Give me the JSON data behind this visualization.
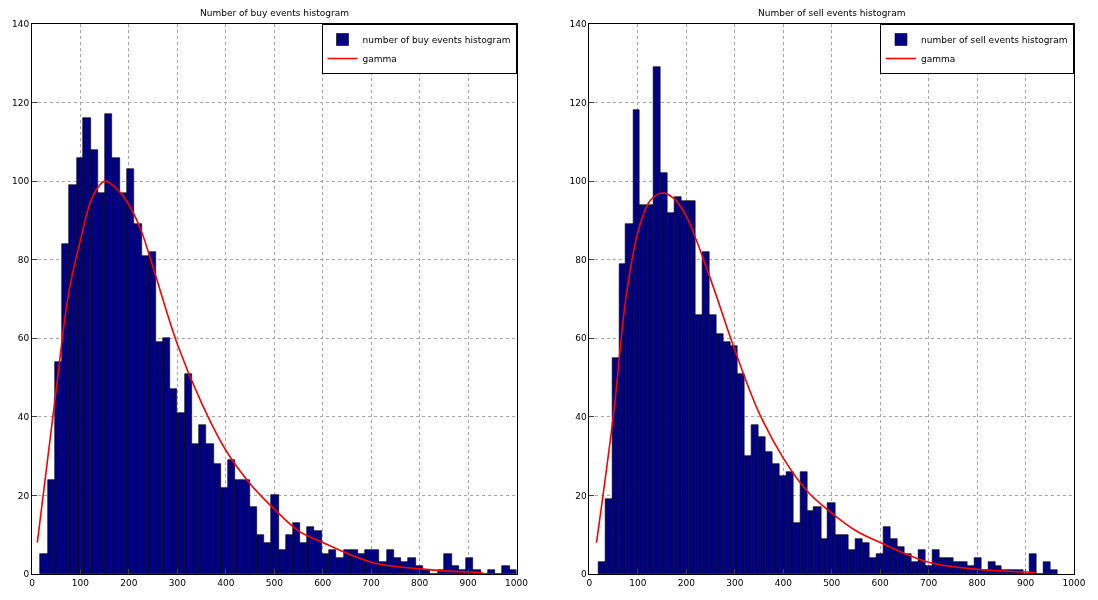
{
  "chart_data": [
    {
      "type": "histogram",
      "title": "Number of buy events histogram",
      "xlim": [
        0,
        1000
      ],
      "xticks": [
        0,
        100,
        200,
        300,
        400,
        500,
        600,
        700,
        800,
        900,
        1000
      ],
      "ylim": [
        0,
        140
      ],
      "yticks": [
        0,
        20,
        40,
        60,
        80,
        100,
        120,
        140
      ],
      "grid": true,
      "legend": "top right",
      "series": [
        {
          "name": "number of buy events histogram",
          "color": "#000080",
          "bins": [
            17,
            32,
            47,
            62,
            77,
            92,
            106,
            121,
            136,
            151,
            166,
            181,
            196,
            211,
            226,
            241,
            255,
            270,
            285,
            300,
            315,
            330,
            345,
            360,
            375,
            390,
            404,
            419,
            434,
            449,
            464,
            479,
            494,
            509,
            524,
            539,
            553,
            568,
            583,
            598,
            613,
            628,
            643,
            658,
            673,
            688,
            702,
            717,
            732,
            747,
            762,
            777,
            792,
            807,
            822,
            837,
            851,
            866,
            881,
            896,
            911,
            926,
            941,
            956,
            971,
            986,
            1000
          ],
          "values": [
            5,
            24,
            54,
            84,
            99,
            106,
            116,
            108,
            97,
            117,
            106,
            97,
            103,
            89,
            81,
            82,
            59,
            60,
            47,
            41,
            51,
            33,
            38,
            33,
            28,
            22,
            29,
            24,
            24,
            17,
            10,
            8,
            20,
            6,
            10,
            13,
            8,
            12,
            11,
            5,
            6,
            4,
            6,
            6,
            5,
            6,
            6,
            3,
            6,
            4,
            3,
            4,
            2,
            1,
            0,
            1,
            5,
            2,
            1,
            4,
            1,
            0,
            1,
            0,
            2,
            1
          ]
        },
        {
          "name": "gamma",
          "type": "line",
          "color": "#ff0000",
          "x": [
            11,
            50,
            75,
            100,
            125,
            150,
            175,
            200,
            225,
            250,
            300,
            350,
            400,
            450,
            500,
            550,
            600,
            700,
            800,
            900,
            930
          ],
          "values": [
            8,
            47,
            71,
            85,
            96,
            100,
            98,
            94,
            87.5,
            78,
            58.5,
            43.5,
            31.5,
            23,
            16.5,
            11,
            8,
            3,
            1.3,
            0.5,
            0.4
          ]
        }
      ]
    },
    {
      "type": "histogram",
      "title": "Number of sell events histogram",
      "xlim": [
        0,
        1000
      ],
      "xticks": [
        0,
        100,
        200,
        300,
        400,
        500,
        600,
        700,
        800,
        900,
        1000
      ],
      "ylim": [
        0,
        140
      ],
      "yticks": [
        0,
        20,
        40,
        60,
        80,
        100,
        120,
        140
      ],
      "grid": true,
      "legend": "top right",
      "series": [
        {
          "name": "number of sell events histogram",
          "color": "#000080",
          "bins": [
            18,
            32,
            47,
            61,
            75,
            90,
            104,
            119,
            133,
            147,
            162,
            176,
            190,
            205,
            219,
            234,
            248,
            262,
            277,
            291,
            305,
            320,
            334,
            349,
            363,
            377,
            392,
            406,
            420,
            435,
            449,
            463,
            478,
            492,
            507,
            521,
            535,
            550,
            564,
            578,
            593,
            607,
            622,
            636,
            650,
            665,
            679,
            693,
            708,
            722,
            737,
            751,
            765,
            780,
            794,
            808,
            823,
            837,
            851,
            866,
            880,
            895,
            909,
            923,
            938,
            952,
            966
          ],
          "values": [
            3,
            19,
            55,
            79,
            89,
            118,
            94,
            94,
            129,
            102,
            92,
            96,
            95,
            95,
            66,
            82,
            66,
            61,
            59,
            58,
            51,
            30,
            38,
            35,
            31,
            28,
            25,
            26,
            13,
            26,
            16,
            17,
            9,
            18,
            10,
            10,
            6,
            9,
            8,
            4,
            5,
            12,
            9,
            7,
            5,
            3,
            6,
            2,
            6,
            4,
            4,
            3,
            3,
            2,
            4,
            1,
            3,
            2,
            1,
            1,
            1,
            0,
            5,
            0,
            3,
            1
          ]
        },
        {
          "name": "gamma",
          "type": "line",
          "color": "#ff0000",
          "x": [
            14.5,
            50,
            75,
            100,
            125,
            150,
            175,
            200,
            250,
            300,
            350,
            400,
            450,
            500,
            550,
            600,
            700,
            800,
            900,
            920
          ],
          "values": [
            8,
            41,
            70,
            87,
            95,
            97,
            95.5,
            91,
            75,
            57,
            41,
            29.5,
            21,
            15.5,
            11,
            8,
            3,
            1.2,
            0.5,
            0.4
          ]
        }
      ]
    }
  ]
}
